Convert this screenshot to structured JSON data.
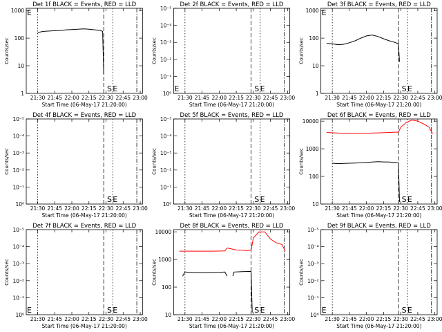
{
  "colors": {
    "events": "#000000",
    "lld": "#ff0000",
    "background": "#ffffff"
  },
  "chart_data": [
    {
      "type": "line",
      "title": "Det 1f BLACK = Events, RED = LLD",
      "xlabel": "Start Time (06-May-17 21:20:00)",
      "ylabel": "Counts/sec",
      "xticks": [
        "21:30",
        "21:45",
        "22:00",
        "22:15",
        "22:30",
        "22:45",
        "23:00"
      ],
      "yticks": [
        "1",
        "10",
        "100",
        "1000"
      ],
      "ylim": [
        1,
        1200
      ],
      "log": true,
      "markers": {
        "S": "22:33",
        "E": "22:38",
        "left_E": true
      },
      "series": [
        {
          "color": "black",
          "x": [
            "21:30",
            "21:35",
            "21:40",
            "21:45",
            "21:50",
            "21:55",
            "22:00",
            "22:05",
            "22:10",
            "22:15",
            "22:20",
            "22:25",
            "22:27",
            "22:28"
          ],
          "y": [
            160,
            175,
            180,
            185,
            190,
            200,
            205,
            210,
            215,
            210,
            200,
            190,
            175,
            5
          ]
        }
      ]
    },
    {
      "type": "line",
      "title": "Det 2f BLACK = Events, RED = LLD",
      "xlabel": "Start Time (06-May-17 21:20:00)",
      "ylabel": "Counts/sec",
      "xticks": [
        "21:30",
        "21:45",
        "22:00",
        "22:15",
        "22:30",
        "22:45",
        "23:00"
      ],
      "yticks": [
        "10⁰",
        "10⁻¹",
        "10⁻²",
        "10⁻³",
        "10⁻⁴",
        "10⁻⁵"
      ],
      "log": true,
      "markers": {
        "S": "22:33",
        "E": "22:38",
        "left_E": true
      },
      "series": []
    },
    {
      "type": "line",
      "title": "Det 3f BLACK = Events, RED = LLD",
      "xlabel": "Start Time (06-May-17 21:20:00)",
      "ylabel": "Counts/sec",
      "xticks": [
        "21:30",
        "21:45",
        "22:00",
        "22:15",
        "22:30",
        "22:45",
        "23:00"
      ],
      "yticks": [
        "1",
        "10",
        "100",
        "1000"
      ],
      "ylim": [
        1,
        1200
      ],
      "log": true,
      "markers": {
        "S": "22:33",
        "E": "22:38",
        "left_E": true
      },
      "series": [
        {
          "color": "black",
          "x": [
            "21:25",
            "21:30",
            "21:35",
            "21:40",
            "21:45",
            "21:50",
            "21:55",
            "22:00",
            "22:05",
            "22:10",
            "22:15",
            "22:20",
            "22:25",
            "22:28",
            "22:29"
          ],
          "y": [
            65,
            62,
            58,
            60,
            68,
            80,
            100,
            120,
            130,
            115,
            95,
            80,
            70,
            62,
            14
          ]
        }
      ]
    },
    {
      "type": "line",
      "title": "Det 4f BLACK = Events, RED = LLD",
      "xlabel": "Start Time (06-May-17 21:20:00)",
      "ylabel": "Counts/sec",
      "xticks": [
        "21:30",
        "21:45",
        "22:00",
        "22:15",
        "22:30",
        "22:45",
        "23:00"
      ],
      "yticks": [
        "10⁰",
        "10⁻¹",
        "10⁻²",
        "10⁻³",
        "10⁻⁴",
        "10⁻⁵"
      ],
      "log": true,
      "markers": {
        "S": "22:33",
        "E": "22:38",
        "left_E": false
      },
      "series": []
    },
    {
      "type": "line",
      "title": "Det 5f BLACK = Events, RED = LLD",
      "xlabel": "Start Time (06-May-17 21:20:00)",
      "ylabel": "Counts/sec",
      "xticks": [
        "21:30",
        "21:45",
        "22:00",
        "22:15",
        "22:30",
        "22:45",
        "23:00"
      ],
      "yticks": [
        "10⁰",
        "10⁻¹",
        "10⁻²",
        "10⁻³",
        "10⁻⁴",
        "10⁻⁵"
      ],
      "log": true,
      "markers": {
        "S": "22:33",
        "E": "22:38",
        "left_E": false
      },
      "series": []
    },
    {
      "type": "line",
      "title": "Det 6f BLACK = Events, RED = LLD",
      "xlabel": "Start Time (06-May-17 21:20:00)",
      "ylabel": "Counts/sec",
      "xticks": [
        "21:30",
        "21:45",
        "22:00",
        "22:15",
        "22:30",
        "22:45",
        "23:00"
      ],
      "yticks": [
        "10",
        "100",
        "1000",
        "10000"
      ],
      "ylim": [
        10,
        12000
      ],
      "log": true,
      "markers": {
        "S": "22:33",
        "E": "22:38",
        "left_E": false
      },
      "series": [
        {
          "color": "red",
          "x": [
            "21:25",
            "21:35",
            "21:45",
            "21:55",
            "22:05",
            "22:15",
            "22:25",
            "22:28",
            "22:30",
            "22:35",
            "22:40",
            "22:45",
            "22:50",
            "22:55",
            "22:58"
          ],
          "y": [
            3900,
            3700,
            3600,
            3650,
            3700,
            3800,
            4000,
            4000,
            6000,
            9000,
            11000,
            10000,
            8000,
            6000,
            3500
          ]
        },
        {
          "color": "black",
          "x": [
            "21:30",
            "21:35",
            "21:40",
            "21:45",
            "21:50",
            "21:55",
            "22:00",
            "22:05",
            "22:10",
            "22:15",
            "22:20",
            "22:25",
            "22:28",
            "22:29"
          ],
          "y": [
            300,
            290,
            295,
            300,
            305,
            310,
            320,
            330,
            340,
            335,
            330,
            320,
            310,
            12
          ]
        }
      ]
    },
    {
      "type": "line",
      "title": "Det 7f BLACK = Events, RED = LLD",
      "xlabel": "Start Time (06-May-17 21:20:00)",
      "ylabel": "Counts/sec",
      "xticks": [
        "21:30",
        "21:45",
        "22:00",
        "22:15",
        "22:30",
        "22:45",
        "23:00"
      ],
      "yticks": [
        "10⁰",
        "10⁻¹",
        "10⁻²",
        "10⁻³",
        "10⁻⁴",
        "10⁻⁵"
      ],
      "log": true,
      "markers": {
        "S": "22:33",
        "E": "22:38",
        "left_E": true
      },
      "series": []
    },
    {
      "type": "line",
      "title": "Det 8f BLACK = Events, RED = LLD",
      "xlabel": "Start Time (06-May-17 21:20:00)",
      "ylabel": "Counts/sec",
      "xticks": [
        "21:30",
        "21:45",
        "22:00",
        "22:15",
        "22:30",
        "22:45",
        "23:00"
      ],
      "yticks": [
        "10",
        "100",
        "1000",
        "10000"
      ],
      "ylim": [
        10,
        12000
      ],
      "log": true,
      "markers": {
        "S": "22:33",
        "E": "22:38",
        "left_E": false
      },
      "series": [
        {
          "color": "red",
          "x": [
            "21:25",
            "21:35",
            "21:45",
            "21:55",
            "22:05",
            "22:07",
            "22:15",
            "22:20",
            "22:25",
            "22:28",
            "22:30",
            "22:35",
            "22:40",
            "22:45",
            "22:50",
            "22:55",
            "22:58"
          ],
          "y": [
            2000,
            2000,
            2000,
            2000,
            2050,
            2600,
            2200,
            2150,
            2100,
            2200,
            6000,
            10000,
            10000,
            5500,
            4000,
            3500,
            2000
          ]
        },
        {
          "color": "black",
          "x": [
            "21:28",
            "21:30",
            "21:40",
            "21:50",
            "22:00",
            "22:05",
            "22:07"
          ],
          "y": [
            250,
            350,
            330,
            330,
            340,
            350,
            250
          ]
        },
        {
          "color": "black",
          "x": [
            "22:12",
            "22:13",
            "22:20",
            "22:28",
            "22:29"
          ],
          "y": [
            250,
            350,
            360,
            370,
            12
          ]
        }
      ]
    },
    {
      "type": "line",
      "title": "Det 9f BLACK = Events, RED = LLD",
      "xlabel": "Start Time (06-May-17 21:20:00)",
      "ylabel": "Counts/sec",
      "xticks": [
        "21:30",
        "21:45",
        "22:00",
        "22:15",
        "22:30",
        "22:45",
        "23:00"
      ],
      "yticks": [
        "10⁰",
        "10⁻¹",
        "10⁻²",
        "10⁻³",
        "10⁻⁴",
        "10⁻⁵"
      ],
      "log": true,
      "markers": {
        "S": "22:33",
        "E": "22:38",
        "left_E": true
      },
      "series": []
    }
  ]
}
